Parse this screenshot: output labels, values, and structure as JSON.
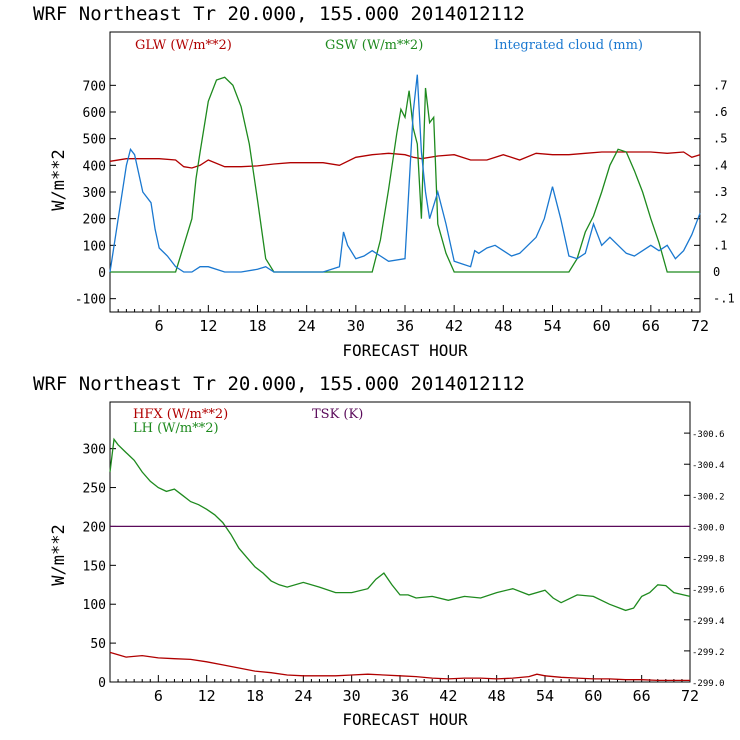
{
  "chart_data": [
    {
      "type": "line",
      "title": "WRF  Northeast Tr  20.000, 155.000  2014012112",
      "xlabel": "FORECAST HOUR",
      "ylabel": "W/m**2",
      "xlim": [
        0,
        72
      ],
      "ylim": [
        -150,
        900
      ],
      "y2lim": [
        -0.15,
        0.9
      ],
      "xticks": [
        "6",
        "12",
        "18",
        "24",
        "30",
        "36",
        "42",
        "48",
        "54",
        "60",
        "66",
        "72"
      ],
      "yticks": [
        "-100",
        "0",
        "100",
        "200",
        "300",
        "400",
        "500",
        "600",
        "700"
      ],
      "y2ticks": [
        "-.1",
        "0",
        ".1",
        ".2",
        ".3",
        ".4",
        ".5",
        ".6",
        ".7"
      ],
      "grid": false,
      "legend_position": "top",
      "colors": {
        "glw": "#b00000",
        "gsw": "#1e8a1e",
        "cloud": "#1a78d0"
      },
      "series": [
        {
          "name": "GLW (W/m**2)",
          "color": "#b00000",
          "axis": "left",
          "x": [
            0,
            2,
            4,
            6,
            8,
            9,
            10,
            11,
            12,
            14,
            16,
            18,
            20,
            22,
            24,
            26,
            28,
            30,
            32,
            34,
            36,
            37,
            38,
            40,
            42,
            44,
            46,
            48,
            50,
            52,
            54,
            56,
            58,
            60,
            62,
            64,
            66,
            68,
            70,
            71,
            72
          ],
          "y": [
            415,
            425,
            425,
            425,
            420,
            395,
            390,
            400,
            420,
            395,
            395,
            398,
            405,
            410,
            410,
            410,
            400,
            430,
            440,
            445,
            440,
            430,
            425,
            435,
            440,
            420,
            420,
            440,
            420,
            445,
            440,
            440,
            445,
            450,
            450,
            450,
            450,
            445,
            450,
            430,
            440
          ]
        },
        {
          "name": "GSW (W/m**2)",
          "color": "#1e8a1e",
          "axis": "left",
          "x": [
            0,
            8,
            9,
            10,
            10.5,
            11,
            12,
            13,
            14,
            15,
            16,
            17,
            18,
            19,
            20,
            32,
            33,
            34,
            35,
            35.5,
            36,
            36.5,
            37,
            37.5,
            38,
            38.5,
            39,
            39.5,
            40,
            41,
            42,
            43,
            44,
            56,
            57,
            58,
            59,
            60,
            61,
            62,
            63,
            64,
            65,
            66,
            67,
            68,
            72
          ],
          "y": [
            0,
            0,
            100,
            200,
            350,
            450,
            640,
            720,
            730,
            700,
            620,
            480,
            270,
            50,
            0,
            0,
            120,
            310,
            520,
            610,
            580,
            680,
            540,
            480,
            200,
            690,
            560,
            580,
            180,
            70,
            0,
            0,
            0,
            0,
            50,
            150,
            210,
            300,
            400,
            460,
            450,
            380,
            300,
            200,
            110,
            0,
            0
          ]
        },
        {
          "name": "Integrated cloud (mm)",
          "color": "#1a78d0",
          "axis": "right",
          "x": [
            0,
            1,
            2,
            2.5,
            3,
            4,
            5,
            5.5,
            6,
            7,
            8,
            9,
            10,
            11,
            12,
            14,
            16,
            18,
            19,
            20,
            22,
            24,
            26,
            28,
            28.5,
            29,
            30,
            31,
            32,
            33,
            34,
            36,
            37,
            37.5,
            38,
            38.5,
            39,
            40,
            41,
            42,
            43,
            44,
            44.5,
            45,
            46,
            47,
            48,
            49,
            50,
            51,
            52,
            53,
            54,
            55,
            56,
            57,
            58,
            59,
            60,
            61,
            62,
            63,
            64,
            65,
            66,
            67,
            68,
            69,
            70,
            71,
            72
          ],
          "y": [
            0,
            0.2,
            0.4,
            0.46,
            0.44,
            0.3,
            0.26,
            0.16,
            0.09,
            0.06,
            0.02,
            0,
            0,
            0.02,
            0.02,
            0,
            0,
            0.01,
            0.02,
            0,
            0,
            0,
            0,
            0.02,
            0.15,
            0.1,
            0.05,
            0.06,
            0.08,
            0.06,
            0.04,
            0.05,
            0.6,
            0.74,
            0.45,
            0.3,
            0.2,
            0.3,
            0.18,
            0.04,
            0.03,
            0.02,
            0.08,
            0.07,
            0.09,
            0.1,
            0.08,
            0.06,
            0.07,
            0.1,
            0.13,
            0.2,
            0.32,
            0.2,
            0.06,
            0.05,
            0.07,
            0.18,
            0.1,
            0.13,
            0.1,
            0.07,
            0.06,
            0.08,
            0.1,
            0.08,
            0.1,
            0.05,
            0.08,
            0.14,
            0.22
          ]
        }
      ]
    },
    {
      "type": "line",
      "title": "WRF  Northeast Tr  20.000, 155.000  2014012112",
      "xlabel": "FORECAST HOUR",
      "ylabel": "W/m**2",
      "xlim": [
        0,
        72
      ],
      "ylim": [
        0,
        360
      ],
      "y2lim": [
        299.0,
        300.8
      ],
      "xticks": [
        "6",
        "12",
        "18",
        "24",
        "30",
        "36",
        "42",
        "48",
        "54",
        "60",
        "66",
        "72"
      ],
      "yticks": [
        "0",
        "50",
        "100",
        "150",
        "200",
        "250",
        "300"
      ],
      "y2ticks": [
        "299.0",
        "299.2",
        "299.4",
        "299.6",
        "299.8",
        "300.0",
        "300.2",
        "300.4",
        "300.6"
      ],
      "grid": false,
      "legend_position": "top",
      "colors": {
        "hfx": "#b00000",
        "lh": "#1e8a1e",
        "tsk": "#5a0a5a"
      },
      "series": [
        {
          "name": "HFX (W/m**2)",
          "color": "#b00000",
          "axis": "left",
          "x": [
            0,
            1,
            2,
            4,
            6,
            8,
            10,
            12,
            14,
            16,
            18,
            20,
            22,
            24,
            26,
            28,
            30,
            32,
            34,
            36,
            38,
            40,
            42,
            44,
            46,
            48,
            50,
            52,
            53,
            54,
            56,
            58,
            60,
            62,
            64,
            66,
            68,
            70,
            72
          ],
          "y": [
            38,
            35,
            32,
            34,
            31,
            30,
            29,
            26,
            22,
            18,
            14,
            12,
            9,
            8,
            8,
            8,
            9,
            10,
            9,
            8,
            7,
            5,
            4,
            5,
            5,
            4,
            5,
            7,
            10,
            8,
            6,
            5,
            4,
            4,
            3,
            3,
            2,
            2,
            2
          ]
        },
        {
          "name": "LH (W/m**2)",
          "color": "#1e8a1e",
          "axis": "left",
          "x": [
            0,
            0.5,
            1,
            2,
            3,
            4,
            5,
            6,
            7,
            8,
            9,
            10,
            11,
            12,
            13,
            14,
            15,
            16,
            17,
            18,
            19,
            20,
            21,
            22,
            24,
            26,
            28,
            30,
            32,
            33,
            34,
            35,
            36,
            37,
            38,
            40,
            42,
            44,
            46,
            48,
            50,
            52,
            54,
            55,
            56,
            58,
            60,
            62,
            64,
            65,
            66,
            67,
            68,
            69,
            70,
            72
          ],
          "y": [
            270,
            312,
            305,
            295,
            285,
            270,
            258,
            250,
            245,
            248,
            240,
            232,
            228,
            222,
            215,
            205,
            190,
            172,
            160,
            148,
            140,
            130,
            125,
            122,
            128,
            122,
            115,
            115,
            120,
            132,
            140,
            125,
            112,
            112,
            108,
            110,
            105,
            110,
            108,
            115,
            120,
            112,
            118,
            108,
            102,
            112,
            110,
            100,
            92,
            95,
            110,
            115,
            125,
            124,
            115,
            110
          ]
        },
        {
          "name": "TSK (K)",
          "color": "#5a0a5a",
          "axis": "right",
          "x": [
            0,
            72
          ],
          "y": [
            300.0,
            300.0
          ]
        }
      ]
    }
  ]
}
